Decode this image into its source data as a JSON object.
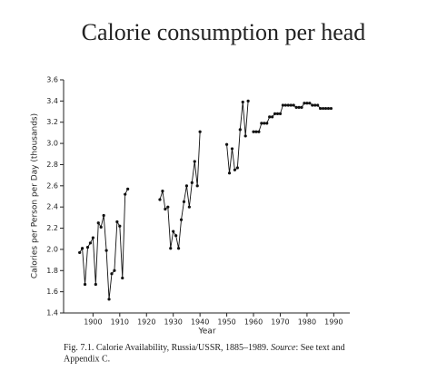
{
  "chart_data": {
    "type": "line",
    "title": "Calorie consumption per head",
    "x_label": "Year",
    "y_label": "Calories per Person per Day (thousands)",
    "caption": [
      "Fig. 7.1. Calorie Availability, Russia/USSR, 1885–1989. ",
      "Source",
      ": See text and",
      "Appendix C."
    ],
    "x": [
      1895,
      1896,
      1897,
      1898,
      1899,
      1900,
      1901,
      1902,
      1903,
      1904,
      1905,
      1906,
      1907,
      1908,
      1909,
      1910,
      1911,
      1912,
      1913,
      1914,
      1915,
      1916,
      1917,
      1918,
      1919,
      1920,
      1921,
      1922,
      1923,
      1924,
      1925,
      1926,
      1927,
      1928,
      1929,
      1930,
      1931,
      1932,
      1933,
      1934,
      1935,
      1936,
      1937,
      1938,
      1939,
      1940,
      1941,
      1942,
      1943,
      1944,
      1945,
      1946,
      1947,
      1948,
      1949,
      1950,
      1951,
      1952,
      1953,
      1954,
      1955,
      1956,
      1957,
      1958,
      1959,
      1960,
      1961,
      1962,
      1963,
      1964,
      1965,
      1966,
      1967,
      1968,
      1969,
      1970,
      1971,
      1972,
      1973,
      1974,
      1975,
      1976,
      1977,
      1978,
      1979,
      1980,
      1981,
      1982,
      1983,
      1984,
      1985,
      1986,
      1987,
      1988,
      1989
    ],
    "series": [
      {
        "color": "#111111",
        "values": [
          1.97,
          2.01,
          1.67,
          2.02,
          2.06,
          2.11,
          1.67,
          2.25,
          2.21,
          2.32,
          1.99,
          1.53,
          1.77,
          1.8,
          2.26,
          2.22,
          1.73,
          2.52,
          2.57,
          null,
          null,
          null,
          null,
          null,
          null,
          null,
          null,
          null,
          null,
          null,
          2.47,
          2.55,
          2.38,
          2.4,
          2.01,
          2.17,
          2.13,
          2.01,
          2.28,
          2.45,
          2.6,
          2.4,
          2.63,
          2.83,
          2.6,
          3.11,
          null,
          null,
          null,
          null,
          null,
          null,
          null,
          null,
          null,
          2.99,
          2.72,
          2.95,
          2.75,
          2.77,
          3.13,
          3.39,
          3.07,
          3.4,
          null,
          3.11,
          3.11,
          3.11,
          3.19,
          3.19,
          3.19,
          3.25,
          3.25,
          3.28,
          3.28,
          3.28,
          3.36,
          3.36,
          3.36,
          3.36,
          3.36,
          3.34,
          3.34,
          3.34,
          3.38,
          3.38,
          3.38,
          3.36,
          3.36,
          3.36,
          3.33,
          3.33,
          3.33,
          3.33,
          3.33
        ]
      }
    ],
    "xlim": [
      1889,
      1996
    ],
    "xticks": [
      1900,
      1910,
      1920,
      1930,
      1940,
      1950,
      1960,
      1970,
      1980,
      1990
    ],
    "ylim": [
      1.4,
      3.6
    ],
    "yticks": [
      1.4,
      1.6,
      1.8,
      {
        "value": 2,
        "label": "2.0"
      },
      2.2,
      2.4,
      2.6,
      2.8,
      {
        "value": 3,
        "label": "3.0"
      },
      3.2,
      3.4,
      3.6
    ],
    "grid": false
  }
}
